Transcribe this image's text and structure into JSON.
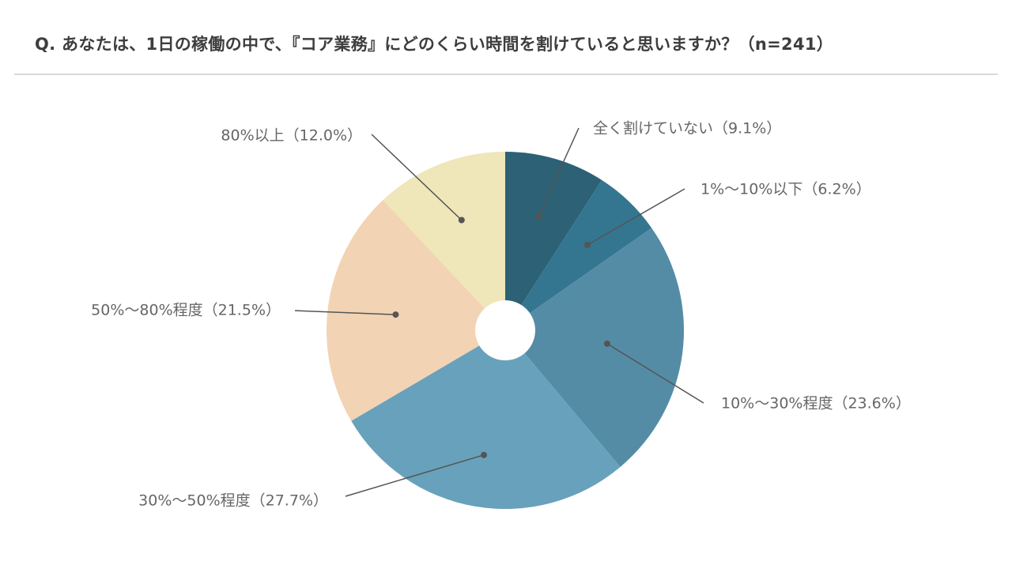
{
  "title": "Q. あなたは、1日の稼働の中で、『コア業務』にどのくらい時間を割けていると思いますか？（n=241）",
  "chart_data": {
    "type": "pie",
    "donut_hole": true,
    "slices": [
      {
        "name": "全く割けていない",
        "value": 9.1,
        "label": "全く割けていない（9.1%）",
        "color": "#2c6176"
      },
      {
        "name": "1%〜10%以下",
        "value": 6.2,
        "label": "1%〜10%以下（6.2%）",
        "color": "#347690"
      },
      {
        "name": "10%〜30%程度",
        "value": 23.6,
        "label": "10%〜30%程度（23.6%）",
        "color": "#548ca6"
      },
      {
        "name": "30%〜50%程度",
        "value": 27.7,
        "label": "30%〜50%程度（27.7%）",
        "color": "#68a1bb"
      },
      {
        "name": "50%〜80%程度",
        "value": 21.5,
        "label": "50%〜80%程度（21.5%）",
        "color": "#f2d3b4"
      },
      {
        "name": "80%以上",
        "value": 12.0,
        "label": "80%以上（12.0%）",
        "color": "#efe6b9"
      }
    ],
    "start": "12 o'clock",
    "direction": "clockwise",
    "legend": "none (callout labels)"
  }
}
